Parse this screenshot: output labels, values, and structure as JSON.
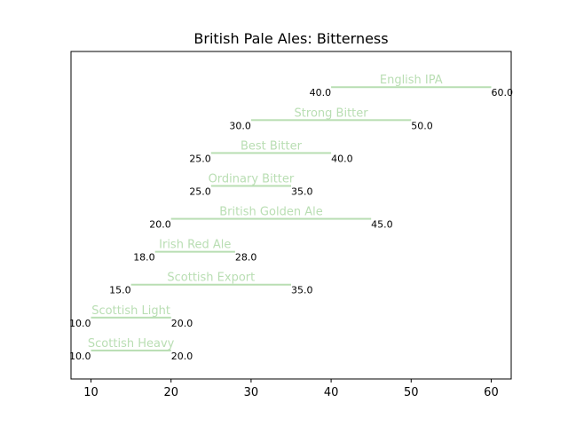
{
  "chart_data": {
    "type": "bar",
    "orientation": "horizontal-range",
    "title": "British Pale Ales: Bitterness",
    "xlabel": "",
    "ylabel": "",
    "xlim": [
      7.5,
      62.5
    ],
    "xticks": [
      10,
      20,
      30,
      40,
      50,
      60
    ],
    "grid": false,
    "bar_color": "#b9deb3",
    "label_color": "#b9deb3",
    "bars": [
      {
        "name": "Scottish Heavy",
        "low": 10,
        "high": 20,
        "low_label": "10.0",
        "high_label": "20.0"
      },
      {
        "name": "Scottish Light",
        "low": 10,
        "high": 20,
        "low_label": "10.0",
        "high_label": "20.0"
      },
      {
        "name": "Scottish Export",
        "low": 15,
        "high": 35,
        "low_label": "15.0",
        "high_label": "35.0"
      },
      {
        "name": "Irish Red Ale",
        "low": 18,
        "high": 28,
        "low_label": "18.0",
        "high_label": "28.0"
      },
      {
        "name": "British Golden Ale",
        "low": 20,
        "high": 45,
        "low_label": "20.0",
        "high_label": "45.0"
      },
      {
        "name": "Ordinary Bitter",
        "low": 25,
        "high": 35,
        "low_label": "25.0",
        "high_label": "35.0"
      },
      {
        "name": "Best Bitter",
        "low": 25,
        "high": 40,
        "low_label": "25.0",
        "high_label": "40.0"
      },
      {
        "name": "Strong Bitter",
        "low": 30,
        "high": 50,
        "low_label": "30.0",
        "high_label": "50.0"
      },
      {
        "name": "English IPA",
        "low": 40,
        "high": 60,
        "low_label": "40.0",
        "high_label": "60.0"
      }
    ]
  }
}
